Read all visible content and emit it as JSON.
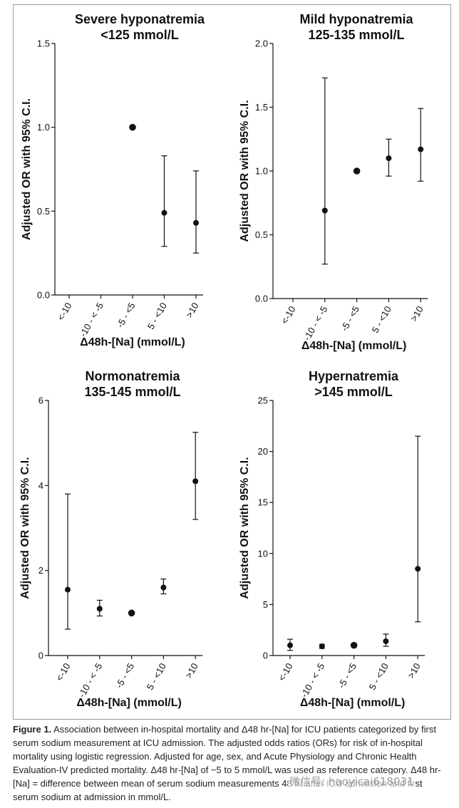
{
  "chart_data": [
    {
      "type": "scatter",
      "title": "Severe hyponatremia",
      "subtitle": "<125 mmol/L",
      "ylabel": "Adjusted OR with 95%  C.I.",
      "xlabel": "Δ48h-[Na] (mmol/L)",
      "categories": [
        "<-10",
        "-10 - < -5",
        "-5 - <5",
        "5 - <10",
        ">10"
      ],
      "ylim": [
        0,
        1.5
      ],
      "yticks": [
        "0.0",
        "0.5",
        "1.0",
        "1.5"
      ],
      "points": [
        {
          "category": "-5 - <5",
          "value": 1.0,
          "reference": true
        },
        {
          "category": "5 - <10",
          "value": 0.49,
          "lower": 0.29,
          "upper": 0.83
        },
        {
          "category": ">10",
          "value": 0.43,
          "lower": 0.25,
          "upper": 0.74
        }
      ]
    },
    {
      "type": "scatter",
      "title": "Mild hyponatremia",
      "subtitle": "125-135 mmol/L",
      "ylabel": "Adjusted OR with 95%  C.I.",
      "xlabel": "Δ48h-[Na] (mmol/L)",
      "categories": [
        "<-10",
        "-10 - < -5",
        "-5 - <5",
        "5 - <10",
        ">10"
      ],
      "ylim": [
        0,
        2.0
      ],
      "yticks": [
        "0.0",
        "0.5",
        "1.0",
        "1.5",
        "2.0"
      ],
      "points": [
        {
          "category": "-10 - < -5",
          "value": 0.69,
          "lower": 0.27,
          "upper": 1.73
        },
        {
          "category": "-5 - <5",
          "value": 1.0,
          "reference": true
        },
        {
          "category": "5 - <10",
          "value": 1.1,
          "lower": 0.96,
          "upper": 1.25
        },
        {
          "category": ">10",
          "value": 1.17,
          "lower": 0.92,
          "upper": 1.49
        }
      ]
    },
    {
      "type": "scatter",
      "title": "Normonatremia",
      "subtitle": "135-145 mmol/L",
      "ylabel": "Adjusted OR with 95%  C.I.",
      "xlabel": "Δ48h-[Na] (mmol/L)",
      "categories": [
        "<-10",
        "-10 - < -5",
        "-5 - <5",
        "5 - <10",
        ">10"
      ],
      "ylim": [
        0,
        6
      ],
      "yticks": [
        "0",
        "2",
        "4",
        "6"
      ],
      "points": [
        {
          "category": "<-10",
          "value": 1.55,
          "lower": 0.62,
          "upper": 3.8
        },
        {
          "category": "-10 - < -5",
          "value": 1.1,
          "lower": 0.93,
          "upper": 1.3
        },
        {
          "category": "-5 - <5",
          "value": 1.0,
          "reference": true
        },
        {
          "category": "5 - <10",
          "value": 1.6,
          "lower": 1.45,
          "upper": 1.8
        },
        {
          "category": ">10",
          "value": 4.1,
          "lower": 3.2,
          "upper": 5.25
        }
      ]
    },
    {
      "type": "scatter",
      "title": "Hypernatremia",
      "subtitle": ">145 mmol/L",
      "ylabel": "Adjusted OR with 95%  C.I.",
      "xlabel": "Δ48h-[Na] (mmol/L)",
      "categories": [
        "<-10",
        "-10 - < -5",
        "-5 - <5",
        "5 - <10",
        ">10"
      ],
      "ylim": [
        0,
        25
      ],
      "yticks": [
        "0",
        "5",
        "10",
        "15",
        "20",
        "25"
      ],
      "points": [
        {
          "category": "<-10",
          "value": 1.0,
          "lower": 0.5,
          "upper": 1.6
        },
        {
          "category": "-10 - < -5",
          "value": 0.9,
          "lower": 0.7,
          "upper": 1.1
        },
        {
          "category": "-5 - <5",
          "value": 1.0,
          "reference": true
        },
        {
          "category": "5 - <10",
          "value": 1.4,
          "lower": 0.9,
          "upper": 2.1
        },
        {
          "category": ">10",
          "value": 8.5,
          "lower": 3.3,
          "upper": 21.5
        }
      ]
    }
  ],
  "caption": {
    "label": "Figure 1.",
    "text": " Association between in-hospital mortality and Δ48 hr-[Na] for ICU patients categorized by first serum sodium measurement at ICU admission. The adjusted odds ratios (ORs) for risk of in-hospital mortality using logistic regression. Adjusted for age, sex, and Acute Physiology and Chronic Health Evaluation-IV predicted mortality. Δ48 hr-[Na] of −5 to 5 mmol/L was used as reference category. Δ48 hr-[Na] = difference between mean of serum sodium measurements 48 hr after ICU admission and first serum sodium at admission in mmol/L."
  },
  "watermark": "微信号: haoyicai618031"
}
